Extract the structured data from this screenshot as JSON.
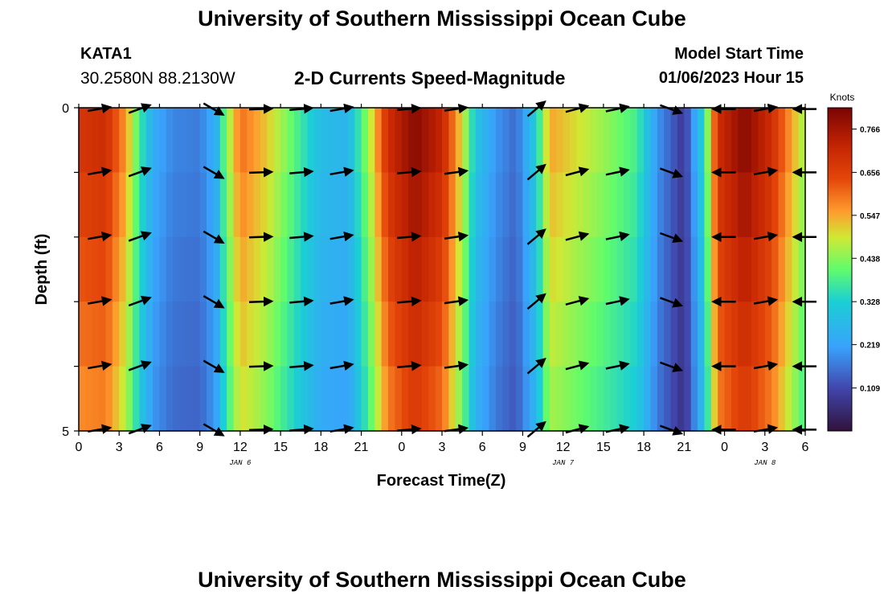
{
  "header": {
    "title": "University of Southern Mississippi Ocean Cube",
    "station": "KATA1",
    "coords": "30.2580N  88.2130W",
    "subtitle": "2-D Currents Speed-Magnitude",
    "model_start_label": "Model Start Time",
    "model_start_value": "01/06/2023 Hour 15"
  },
  "footer": {
    "title": "University of Southern Mississippi Ocean Cube"
  },
  "chart_data": {
    "type": "heatmap",
    "title": "2-D Currents Speed-Magnitude",
    "xlabel": "Forecast Time(Z)",
    "ylabel": "Depth (ft)",
    "x_tick_labels": [
      "0",
      "3",
      "6",
      "9",
      "12",
      "15",
      "18",
      "21",
      "0",
      "3",
      "6",
      "9",
      "12",
      "15",
      "18",
      "21",
      "0",
      "3",
      "6"
    ],
    "day_labels": [
      {
        "label": "JAN 6",
        "hour": 12
      },
      {
        "label": "JAN 7",
        "hour": 36
      },
      {
        "label": "JAN 8",
        "hour": 51
      }
    ],
    "y_tick_labels": [
      {
        "label": "0",
        "depth": 0
      },
      {
        "label": "5",
        "depth": 5
      }
    ],
    "xlim_hours": [
      0,
      54
    ],
    "ylim_depth": [
      0,
      5
    ],
    "colorbar": {
      "label": "Knots",
      "ticks": [
        "0.766",
        "0.656",
        "0.547",
        "0.438",
        "0.328",
        "0.219",
        "0.109"
      ],
      "tick_values": [
        0.766,
        0.656,
        0.547,
        0.438,
        0.328,
        0.219,
        0.109
      ],
      "range": [
        0,
        0.82
      ]
    },
    "speed_profile": [
      {
        "hour": 0,
        "speed": 0.68
      },
      {
        "hour": 2,
        "speed": 0.7
      },
      {
        "hour": 3.5,
        "speed": 0.56
      },
      {
        "hour": 4.5,
        "speed": 0.38
      },
      {
        "hour": 5.5,
        "speed": 0.24
      },
      {
        "hour": 7,
        "speed": 0.18
      },
      {
        "hour": 9,
        "speed": 0.17
      },
      {
        "hour": 10.2,
        "speed": 0.25
      },
      {
        "hour": 10.8,
        "speed": 0.4
      },
      {
        "hour": 12,
        "speed": 0.6
      },
      {
        "hour": 14,
        "speed": 0.52
      },
      {
        "hour": 16,
        "speed": 0.4
      },
      {
        "hour": 18,
        "speed": 0.28
      },
      {
        "hour": 20,
        "speed": 0.26
      },
      {
        "hour": 21.5,
        "speed": 0.45
      },
      {
        "hour": 23,
        "speed": 0.7
      },
      {
        "hour": 25,
        "speed": 0.8
      },
      {
        "hour": 27,
        "speed": 0.72
      },
      {
        "hour": 28.5,
        "speed": 0.5
      },
      {
        "hour": 29.5,
        "speed": 0.3
      },
      {
        "hour": 31,
        "speed": 0.2
      },
      {
        "hour": 32.5,
        "speed": 0.15
      },
      {
        "hour": 34,
        "speed": 0.32
      },
      {
        "hour": 35,
        "speed": 0.55
      },
      {
        "hour": 37,
        "speed": 0.5
      },
      {
        "hour": 39,
        "speed": 0.45
      },
      {
        "hour": 41.5,
        "speed": 0.38
      },
      {
        "hour": 43,
        "speed": 0.2
      },
      {
        "hour": 45,
        "speed": 0.08
      },
      {
        "hour": 46.5,
        "speed": 0.35
      },
      {
        "hour": 47.5,
        "speed": 0.7
      },
      {
        "hour": 49.5,
        "speed": 0.8
      },
      {
        "hour": 51.5,
        "speed": 0.7
      },
      {
        "hour": 53,
        "speed": 0.55
      },
      {
        "hour": 54,
        "speed": 0.45
      }
    ],
    "depth_rows": [
      0,
      1,
      2,
      3,
      4,
      5
    ],
    "vector_hours": [
      1.5,
      4.5,
      10,
      13.5,
      16.5,
      19.5,
      24.5,
      28,
      34,
      37,
      40,
      44,
      48,
      51,
      54
    ],
    "vector_angles_deg": [
      {
        "hour": 1.5,
        "angle": 10
      },
      {
        "hour": 4.5,
        "angle": 20
      },
      {
        "hour": 10,
        "angle": -30
      },
      {
        "hour": 13.5,
        "angle": 2
      },
      {
        "hour": 16.5,
        "angle": 5
      },
      {
        "hour": 19.5,
        "angle": 10
      },
      {
        "hour": 24.5,
        "angle": 5
      },
      {
        "hour": 28,
        "angle": 8
      },
      {
        "hour": 34,
        "angle": 40
      },
      {
        "hour": 37,
        "angle": 15
      },
      {
        "hour": 40,
        "angle": 12
      },
      {
        "hour": 44,
        "angle": -20
      },
      {
        "hour": 48,
        "angle": 180
      },
      {
        "hour": 51,
        "angle": 10
      },
      {
        "hour": 54,
        "angle": 180
      }
    ]
  }
}
